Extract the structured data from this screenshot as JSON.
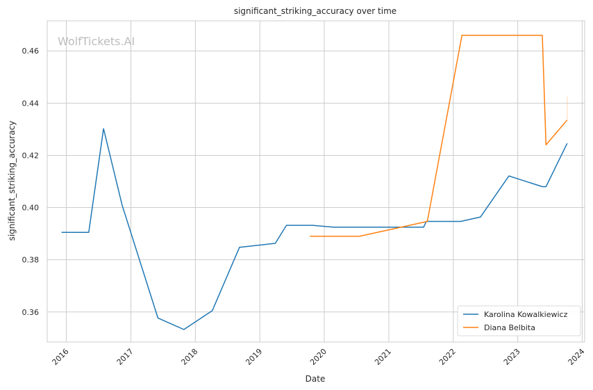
{
  "chart_data": {
    "type": "line",
    "title": "significant_striking_accuracy over time",
    "xlabel": "Date",
    "ylabel": "significant_striking_accuracy",
    "watermark": "WolfTickets.AI",
    "xlim": [
      "2015-09-15",
      "2024-01-15"
    ],
    "ylim": [
      0.3485,
      0.4715
    ],
    "x_ticks": [
      "2016-01-01",
      "2017-01-01",
      "2018-01-01",
      "2019-01-01",
      "2020-01-01",
      "2021-01-01",
      "2022-01-01",
      "2023-01-01",
      "2024-01-01"
    ],
    "x_tick_labels": [
      "2016",
      "2017",
      "2018",
      "2019",
      "2020",
      "2021",
      "2022",
      "2023",
      "2024"
    ],
    "y_ticks": [
      0.36,
      0.38,
      0.4,
      0.42,
      0.44,
      0.46
    ],
    "y_tick_labels": [
      "0.36",
      "0.38",
      "0.40",
      "0.42",
      "0.44",
      "0.46"
    ],
    "grid": true,
    "legend_position": "bottom-right",
    "series": [
      {
        "name": "Karolina Kowalkiewicz",
        "color": "#1f77b4",
        "points": [
          [
            "2015-12-05",
            0.3905
          ],
          [
            "2016-05-07",
            0.3905
          ],
          [
            "2016-07-30",
            0.4302
          ],
          [
            "2016-11-12",
            0.401
          ],
          [
            "2017-06-03",
            0.3577
          ],
          [
            "2017-10-28",
            0.3533
          ],
          [
            "2018-04-07",
            0.3605
          ],
          [
            "2018-09-08",
            0.3848
          ],
          [
            "2019-03-30",
            0.3863
          ],
          [
            "2019-06-01",
            0.3932
          ],
          [
            "2019-10-26",
            0.3932
          ],
          [
            "2020-02-22",
            0.3925
          ],
          [
            "2021-07-17",
            0.3925
          ],
          [
            "2021-08-01",
            0.3947
          ],
          [
            "2022-02-12",
            0.3947
          ],
          [
            "2022-06-04",
            0.3964
          ],
          [
            "2022-11-12",
            0.4121
          ],
          [
            "2023-05-20",
            0.408
          ],
          [
            "2023-06-10",
            0.408
          ],
          [
            "2023-10-08",
            0.4246
          ]
        ]
      },
      {
        "name": "Diana Belbita",
        "color": "#ff7f0e",
        "points": [
          [
            "2019-10-12",
            0.389
          ],
          [
            "2020-07-18",
            0.389
          ],
          [
            "2021-08-07",
            0.3947
          ],
          [
            "2022-02-19",
            0.466
          ],
          [
            "2023-05-20",
            0.466
          ],
          [
            "2023-06-10",
            0.424
          ],
          [
            "2023-10-08",
            0.4335
          ]
        ]
      }
    ]
  }
}
